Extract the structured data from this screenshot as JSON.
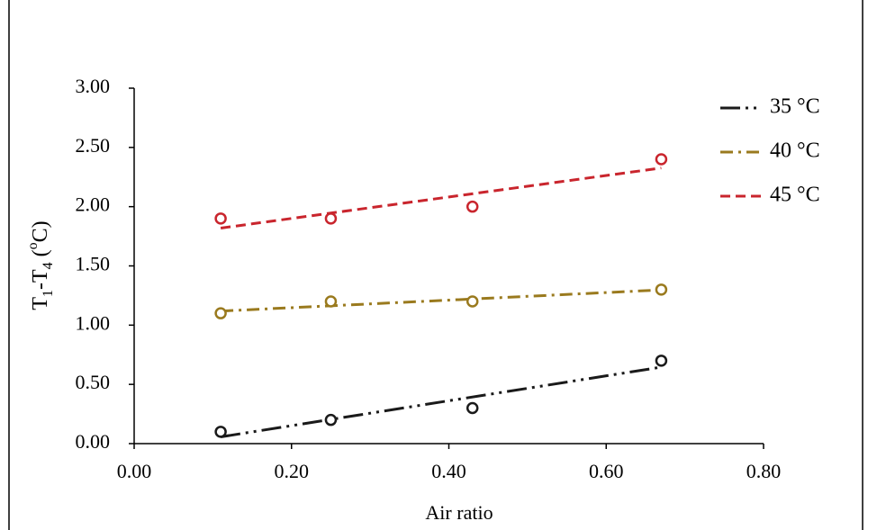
{
  "chart_data": {
    "type": "scatter",
    "xlabel": "Air ratio",
    "ylabel": [
      "T",
      "1",
      "-T",
      "4",
      " (",
      "o",
      "C)"
    ],
    "x": [
      0.11,
      0.25,
      0.43,
      0.67
    ],
    "series": [
      {
        "name": "35 °C",
        "color": "#1a1a1a",
        "line_style": "dash-dot-dot",
        "values": [
          0.1,
          0.2,
          0.3,
          0.7
        ]
      },
      {
        "name": "40 °C",
        "color": "#9a7a1e",
        "line_style": "dash-dot",
        "values": [
          1.1,
          1.2,
          1.2,
          1.3
        ]
      },
      {
        "name": "45 °C",
        "color": "#c9252d",
        "line_style": "dash",
        "values": [
          1.9,
          1.9,
          2.0,
          2.4
        ]
      }
    ],
    "trendline": "linear",
    "xlim": [
      0,
      0.8
    ],
    "xticks": [
      {
        "value": 0,
        "label": "0.00"
      },
      {
        "value": 0.2,
        "label": "0.20"
      },
      {
        "value": 0.4,
        "label": "0.40"
      },
      {
        "value": 0.6,
        "label": "0.60"
      },
      {
        "value": 0.8,
        "label": "0.80"
      }
    ],
    "ylim": [
      0,
      3
    ],
    "yticks": [
      {
        "value": 0,
        "label": "0.00"
      },
      {
        "value": 0.5,
        "label": "0.50"
      },
      {
        "value": 1,
        "label": "1.00"
      },
      {
        "value": 1.5,
        "label": "1.50"
      },
      {
        "value": 2,
        "label": "2.00"
      },
      {
        "value": 2.5,
        "label": "2.50"
      },
      {
        "value": 3,
        "label": "3.00"
      }
    ],
    "legend": "top-right"
  }
}
